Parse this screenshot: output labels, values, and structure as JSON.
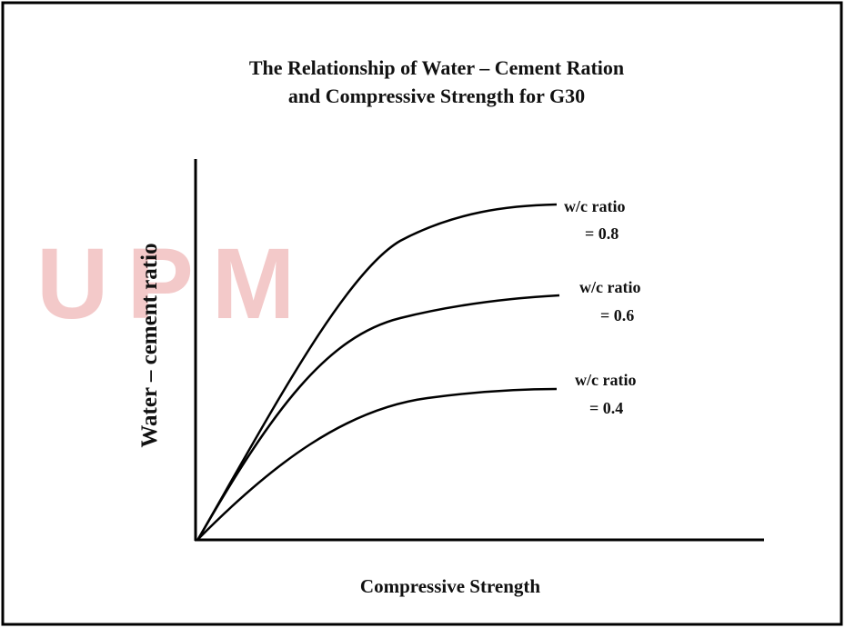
{
  "title": [
    "The Relationship of Water – Cement Ration",
    "and Compressive Strength for G30"
  ],
  "y_axis_label": "Water – cement ratio",
  "x_axis_label": "Compressive Strength",
  "watermark": "UPM",
  "curves": [
    {
      "label": [
        "w/c ratio",
        "= 0.8"
      ]
    },
    {
      "label": [
        "w/c ratio",
        "= 0.6"
      ]
    },
    {
      "label": [
        "w/c ratio",
        "= 0.4"
      ]
    }
  ]
}
